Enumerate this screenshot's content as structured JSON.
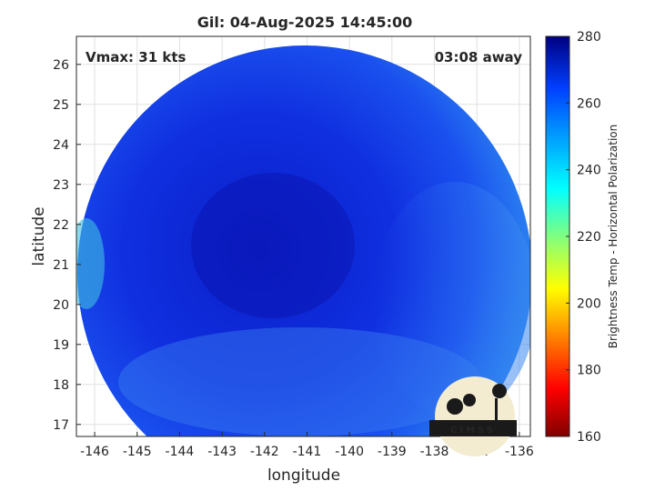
{
  "title": "Gil: 04-Aug-2025 14:45:00",
  "vmax_label": "Vmax: 31 kts",
  "away_label": "03:08 away",
  "xlabel": "longitude",
  "ylabel": "latitude",
  "xticks": [
    "-146",
    "-145",
    "-144",
    "-143",
    "-142",
    "-141",
    "-140",
    "-139",
    "-138",
    "-137",
    "-136"
  ],
  "xtick_values": [
    -146,
    -145,
    -144,
    -143,
    -142,
    -141,
    -140,
    -139,
    -138,
    -137,
    -136
  ],
  "yticks": [
    "17",
    "18",
    "19",
    "20",
    "21",
    "22",
    "23",
    "24",
    "25",
    "26"
  ],
  "ytick_values": [
    17,
    18,
    19,
    20,
    21,
    22,
    23,
    24,
    25,
    26
  ],
  "xlim": [
    -146.43,
    -135.74
  ],
  "ylim": [
    16.7,
    26.7
  ],
  "colorbar": {
    "label": "Brightness Temp - Horizontal Polarization",
    "ticks": [
      "160",
      "180",
      "200",
      "220",
      "240",
      "260",
      "280"
    ],
    "tick_values": [
      160,
      180,
      200,
      220,
      240,
      260,
      280
    ],
    "range": [
      160,
      280
    ]
  },
  "logo_text": "CIMSS"
}
